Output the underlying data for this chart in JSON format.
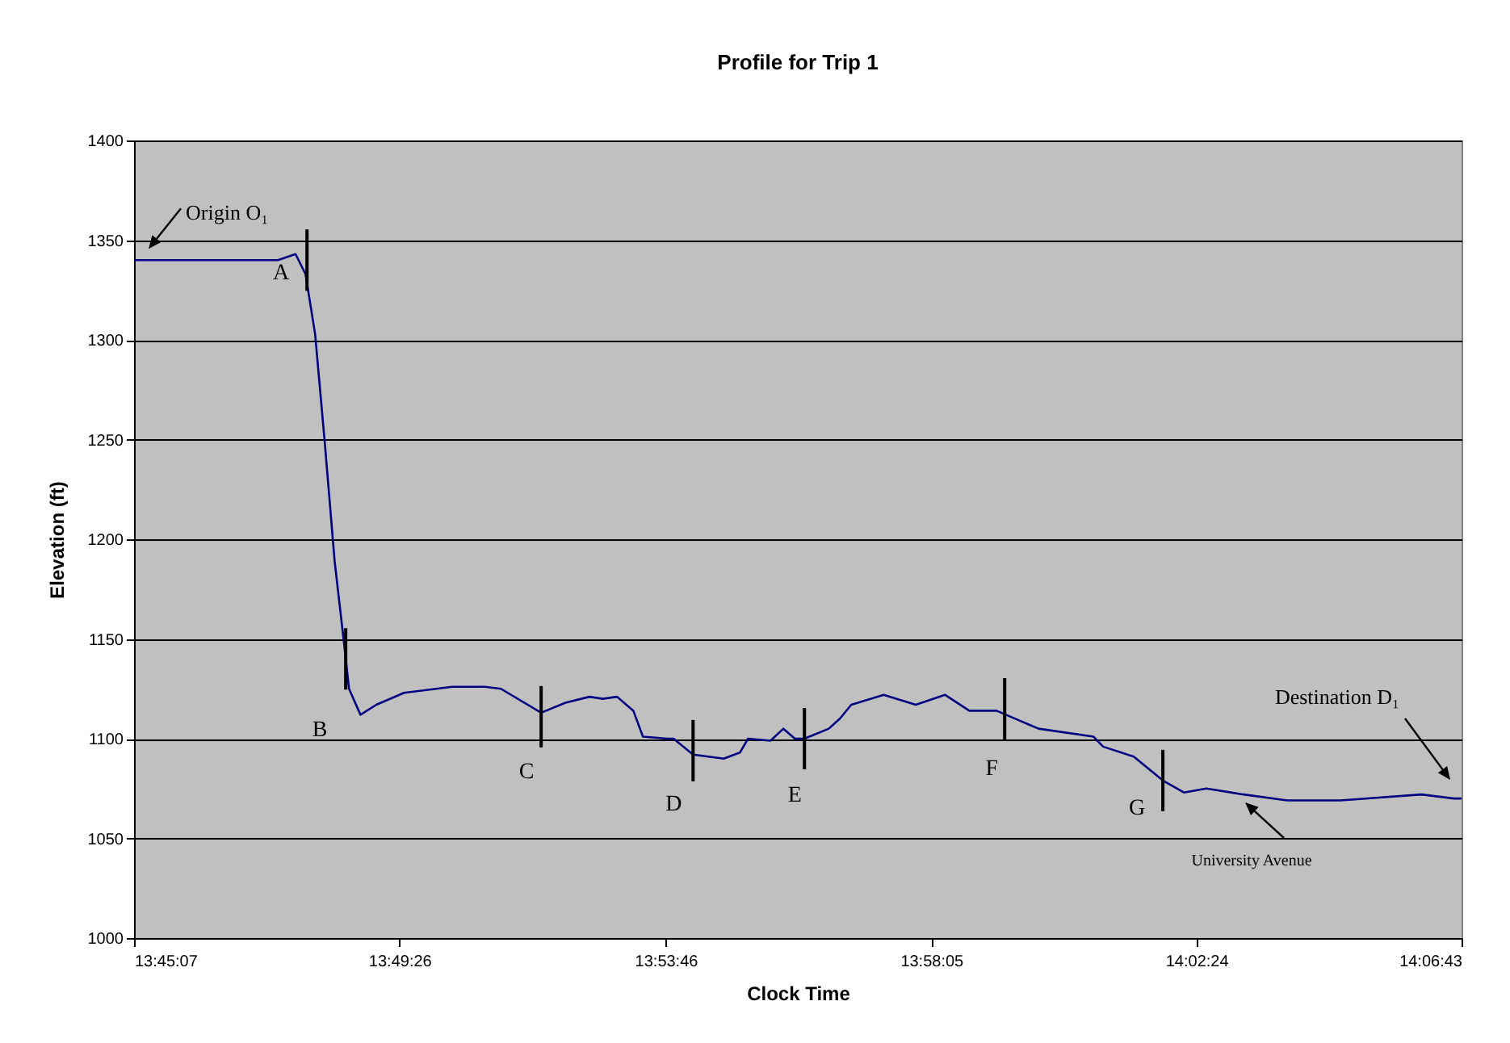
{
  "chart_data": {
    "type": "line",
    "title": "Profile for Trip 1",
    "xlabel": "Clock Time",
    "ylabel": "Elevation (ft)",
    "xlim": [
      13.7519,
      14.1119
    ],
    "xticks": [
      {
        "value": 13.7519,
        "label": "13:45:07"
      },
      {
        "value": 13.8239,
        "label": "13:49:26"
      },
      {
        "value": 13.8961,
        "label": "13:53:46"
      },
      {
        "value": 13.9681,
        "label": "13:58:05"
      },
      {
        "value": 14.04,
        "label": "14:02:24"
      },
      {
        "value": 14.1119,
        "label": "14:06:43"
      }
    ],
    "ylim": [
      1000,
      1400
    ],
    "yticks": [
      1000,
      1050,
      1100,
      1150,
      1200,
      1250,
      1300,
      1350,
      1400
    ],
    "grid": "y",
    "marker": "none",
    "line_style": "solid",
    "series": [
      {
        "color": "#000080",
        "x": [
          13.7519,
          13.7909,
          13.7957,
          13.7984,
          13.801,
          13.8036,
          13.8063,
          13.8089,
          13.8102,
          13.8133,
          13.8176,
          13.8251,
          13.8382,
          13.847,
          13.8514,
          13.8623,
          13.8689,
          13.8754,
          13.879,
          13.8829,
          13.8873,
          13.8899,
          13.8965,
          13.8982,
          13.9035,
          13.9118,
          13.9162,
          13.9184,
          13.9245,
          13.928,
          13.9311,
          13.9337,
          13.9403,
          13.9433,
          13.9464,
          13.9552,
          13.9639,
          13.9718,
          13.9784,
          13.9858,
          13.9972,
          14.0121,
          14.0147,
          14.023,
          14.0309,
          14.0366,
          14.0427,
          14.0528,
          14.0646,
          14.0791,
          14.101,
          14.1098,
          14.1119
        ],
        "values": [
          1340,
          1340,
          1343,
          1333,
          1303,
          1249,
          1189,
          1147,
          1125,
          1112,
          1117,
          1123,
          1126,
          1126,
          1125,
          1113,
          1118,
          1121,
          1120,
          1121,
          1114,
          1101,
          1100,
          1100,
          1092,
          1090,
          1093,
          1100,
          1099,
          1105,
          1100,
          1100,
          1105,
          1110,
          1117,
          1122,
          1117,
          1122,
          1114,
          1114,
          1105,
          1101,
          1096,
          1091,
          1079,
          1073,
          1075,
          1072,
          1069,
          1069,
          1072,
          1070,
          1070
        ]
      }
    ],
    "annotations": [
      {
        "text": "A",
        "x": 13.7988,
        "y": 1340
      },
      {
        "text": "B",
        "x": 13.8093,
        "y": 1140
      },
      {
        "text": "C",
        "x": 13.8623,
        "y": 1111
      },
      {
        "text": "D",
        "x": 13.9035,
        "y": 1094
      },
      {
        "text": "E",
        "x": 13.9337,
        "y": 1100
      },
      {
        "text": "F",
        "x": 13.988,
        "y": 1115
      },
      {
        "text": "G",
        "x": 14.0309,
        "y": 1079
      },
      {
        "text": "Origin O₁",
        "x": 13.7519,
        "y": 1340
      },
      "Destination D₁",
      "University Avenue"
    ]
  }
}
